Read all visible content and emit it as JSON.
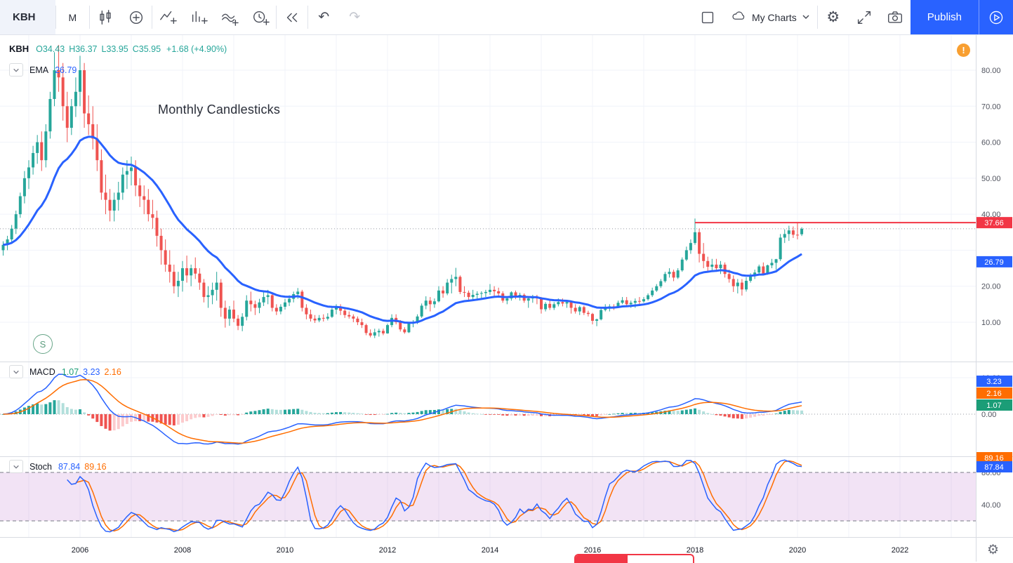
{
  "toolbar": {
    "symbol": "KBH",
    "interval": "M",
    "my_charts": "My Charts",
    "publish": "Publish"
  },
  "icons": {
    "undo_glyph": "↶",
    "redo_glyph": "↷",
    "gear_glyph": "⚙"
  },
  "legend": {
    "symbol": "KBH",
    "open": "O34.43",
    "high": "H36.37",
    "low": "L33.95",
    "close": "C35.95",
    "change": "+1.68 (+4.90%)",
    "ema_label": "EMA",
    "ema_value": "26.79"
  },
  "macd_legend": {
    "label": "MACD",
    "hist": "1.07",
    "macd": "3.23",
    "signal": "2.16"
  },
  "stoch_legend": {
    "label": "Stoch",
    "k": "87.84",
    "d": "89.16"
  },
  "annotations": {
    "note": "Monthly Candlesticks",
    "warning": "!",
    "session_badge": "S"
  },
  "axes": {
    "price_ticks": [
      {
        "v": 80,
        "label": "80.00"
      },
      {
        "v": 70,
        "label": "70.00"
      },
      {
        "v": 60,
        "label": "60.00"
      },
      {
        "v": 50,
        "label": "50.00"
      },
      {
        "v": 40,
        "label": "40.00"
      },
      {
        "v": 20,
        "label": "20.00"
      },
      {
        "v": 10,
        "label": "10.00"
      }
    ],
    "macd_ticks": [
      {
        "v": 10,
        "label": "10.00"
      },
      {
        "v": 0,
        "label": "0.00"
      }
    ],
    "stoch_ticks": [
      {
        "v": 80,
        "label": "80.00"
      },
      {
        "v": 40,
        "label": "40.00"
      }
    ],
    "years": [
      "2006",
      "2008",
      "2010",
      "2012",
      "2014",
      "2016",
      "2018",
      "2020",
      "2022"
    ],
    "price_badges": [
      {
        "label": "37.66",
        "color": "#f23645",
        "price": 37.66
      },
      {
        "label": "26.79",
        "color": "#2962ff",
        "price": 26.79
      }
    ],
    "macd_badges": [
      {
        "label": "3.23",
        "color": "#2962ff"
      },
      {
        "label": "2.16",
        "color": "#ff6d00"
      },
      {
        "label": "1.07",
        "color": "#1b9d77"
      }
    ],
    "stoch_badges": [
      {
        "label": "89.16",
        "color": "#ff6d00"
      },
      {
        "label": "87.84",
        "color": "#2962ff"
      }
    ]
  },
  "colors": {
    "up": "#26a69a",
    "down": "#ef5350",
    "ema": "#2962ff",
    "macd_line": "#2962ff",
    "signal_line": "#ff6d00",
    "hist_up": "#26a69a",
    "hist_up_fade": "#b2dfdb",
    "hist_down": "#ef5350",
    "hist_down_fade": "#fccbcd",
    "stoch_k": "#2962ff",
    "stoch_d": "#ff6d00",
    "band_fill": "rgba(156,39,176,0.13)",
    "band_line": "#787b86",
    "red_line": "#f23645",
    "grid": "#f0f3fa",
    "separator": "#d8dbe2",
    "close_dotted": "#9598a1"
  },
  "chart_data": {
    "type": "candlestick",
    "symbol": "KBH",
    "timeframe": "monthly",
    "start_month": "2004-07",
    "title_note": "Monthly Candlesticks",
    "last_bar": {
      "open": 34.43,
      "high": 36.37,
      "low": 33.95,
      "close": 35.95,
      "change": 1.68,
      "change_pct": 4.9
    },
    "overlays": [
      {
        "name": "EMA",
        "period": 20,
        "last_value": 26.79
      }
    ],
    "horizontal_line": {
      "price": 37.66,
      "from_year": 2018
    },
    "last_close_line": 35.95,
    "indicators": [
      {
        "name": "MACD",
        "params": [
          12,
          26,
          9
        ],
        "hist": 1.07,
        "macd": 3.23,
        "signal": 2.16
      },
      {
        "name": "Stoch",
        "params": [
          14,
          3,
          3
        ],
        "k": 87.84,
        "d": 89.16,
        "bands": [
          80,
          20
        ]
      }
    ],
    "price_axis_range": [
      5,
      88
    ],
    "candles": [
      [
        30,
        32.5,
        28.5,
        31.5
      ],
      [
        31.5,
        34,
        30,
        33
      ],
      [
        33,
        37,
        32,
        36
      ],
      [
        36,
        41,
        34.5,
        40
      ],
      [
        40,
        46,
        39,
        45
      ],
      [
        45,
        52,
        43,
        50
      ],
      [
        50,
        55,
        47,
        53
      ],
      [
        53,
        59,
        51,
        57
      ],
      [
        57,
        62,
        54,
        60
      ],
      [
        60,
        63,
        52,
        55
      ],
      [
        55,
        65,
        53,
        63
      ],
      [
        63,
        74,
        61,
        72
      ],
      [
        72,
        85,
        70,
        80
      ],
      [
        80,
        87,
        74,
        78
      ],
      [
        78,
        82,
        66,
        70
      ],
      [
        70,
        74,
        60,
        64
      ],
      [
        64,
        72,
        62,
        70
      ],
      [
        70,
        78,
        67,
        74
      ],
      [
        74,
        84,
        70,
        80
      ],
      [
        80,
        82,
        64,
        68
      ],
      [
        68,
        73,
        62,
        65
      ],
      [
        65,
        70,
        58,
        61
      ],
      [
        61,
        65,
        52,
        55
      ],
      [
        55,
        58,
        44,
        46
      ],
      [
        46,
        51,
        40,
        44
      ],
      [
        44,
        47,
        38,
        41
      ],
      [
        41,
        46,
        38,
        44
      ],
      [
        44,
        49,
        41,
        46
      ],
      [
        46,
        53,
        44,
        51
      ],
      [
        51,
        55,
        47,
        52
      ],
      [
        52,
        56,
        48,
        53
      ],
      [
        53,
        55,
        45,
        48
      ],
      [
        48,
        50,
        42,
        45
      ],
      [
        45,
        48,
        40,
        44
      ],
      [
        44,
        47,
        38,
        40
      ],
      [
        40,
        44,
        36,
        39
      ],
      [
        39,
        41,
        31,
        34
      ],
      [
        34,
        36,
        26,
        30
      ],
      [
        30,
        33,
        24,
        26
      ],
      [
        26,
        30,
        21,
        24
      ],
      [
        24,
        26,
        18,
        20
      ],
      [
        20,
        24,
        17,
        21.5
      ],
      [
        21.5,
        27,
        18.5,
        25
      ],
      [
        25,
        28.5,
        21,
        23
      ],
      [
        23,
        26,
        20,
        25
      ],
      [
        25,
        28,
        22,
        23.5
      ],
      [
        23.5,
        25,
        19,
        21
      ],
      [
        21,
        22,
        15.5,
        17
      ],
      [
        17,
        20,
        14,
        17.5
      ],
      [
        17.5,
        21,
        15,
        19
      ],
      [
        19,
        24,
        16,
        21
      ],
      [
        21,
        22,
        11.5,
        14
      ],
      [
        14,
        16,
        8.5,
        11
      ],
      [
        11,
        14.5,
        9,
        13.5
      ],
      [
        13.5,
        16,
        10,
        11
      ],
      [
        11,
        12,
        7.8,
        9
      ],
      [
        9,
        12.5,
        7.5,
        11.5
      ],
      [
        11.5,
        17.5,
        10.5,
        16
      ],
      [
        16,
        18.5,
        13,
        15
      ],
      [
        15,
        16,
        12,
        14
      ],
      [
        14,
        16.5,
        12.5,
        15.5
      ],
      [
        15.5,
        18.5,
        14.5,
        17
      ],
      [
        17,
        19,
        15,
        17.5
      ],
      [
        17.5,
        18,
        13,
        14
      ],
      [
        14,
        15,
        12,
        13
      ],
      [
        13,
        15,
        12.2,
        14.3
      ],
      [
        14.3,
        16.5,
        13.5,
        15.5
      ],
      [
        15.5,
        17.5,
        14.5,
        16.5
      ],
      [
        16.5,
        18.5,
        15.5,
        17.8
      ],
      [
        17.8,
        19.5,
        16.5,
        18.5
      ],
      [
        18.5,
        19,
        13,
        14
      ],
      [
        14,
        15,
        10.8,
        12.2
      ],
      [
        12.2,
        13.5,
        10.2,
        11
      ],
      [
        11,
        12,
        9.8,
        10.5
      ],
      [
        10.5,
        12,
        10,
        11.2
      ],
      [
        11.2,
        12.2,
        10.2,
        11
      ],
      [
        11,
        12.5,
        10.5,
        11.5
      ],
      [
        11.5,
        14,
        11.2,
        13.5
      ],
      [
        13.5,
        15,
        12.2,
        14
      ],
      [
        14,
        15,
        12,
        13.2
      ],
      [
        13.2,
        14,
        11.2,
        12
      ],
      [
        12,
        13,
        11,
        11.6
      ],
      [
        11.6,
        12.2,
        10,
        11
      ],
      [
        11,
        11.6,
        9.2,
        10
      ],
      [
        10,
        11,
        8.4,
        9.2
      ],
      [
        9.2,
        9.6,
        6.4,
        7
      ],
      [
        7,
        8,
        5.8,
        6.3
      ],
      [
        6.3,
        8.2,
        5.6,
        7.2
      ],
      [
        7.2,
        8.2,
        6,
        7.6
      ],
      [
        7.6,
        8.2,
        6.4,
        6.9
      ],
      [
        6.9,
        9.6,
        6.8,
        9.2
      ],
      [
        9.2,
        12.2,
        8.6,
        11.2
      ],
      [
        11.2,
        12.2,
        9.4,
        10
      ],
      [
        10,
        10.6,
        7.4,
        8
      ],
      [
        8,
        8.6,
        6.8,
        7.2
      ],
      [
        7.2,
        10,
        7,
        9.6
      ],
      [
        9.6,
        10.6,
        8.6,
        9.9
      ],
      [
        9.9,
        12.2,
        9.5,
        11.6
      ],
      [
        11.6,
        15.2,
        11.2,
        14.6
      ],
      [
        14.6,
        17.2,
        13.6,
        16
      ],
      [
        16,
        17,
        13,
        15
      ],
      [
        15,
        16.6,
        14,
        15.8
      ],
      [
        15.8,
        20,
        15.5,
        18.8
      ],
      [
        18.8,
        20,
        16.8,
        18
      ],
      [
        18,
        22,
        17.5,
        21
      ],
      [
        21,
        23.2,
        18,
        22
      ],
      [
        22,
        25.1,
        20,
        22.6
      ],
      [
        22.6,
        23,
        17.8,
        18.4
      ],
      [
        18.4,
        20,
        17,
        18.2
      ],
      [
        18.2,
        18.8,
        16,
        17
      ],
      [
        17,
        19,
        16,
        17.6
      ],
      [
        17.6,
        18.6,
        16,
        17.9
      ],
      [
        17.9,
        18.6,
        16.6,
        18.1
      ],
      [
        18.1,
        19,
        17,
        18.4
      ],
      [
        18.4,
        20.6,
        17.6,
        19
      ],
      [
        19,
        20,
        17,
        18.6
      ],
      [
        18.6,
        19.6,
        17,
        18
      ],
      [
        18,
        18.6,
        15.4,
        16
      ],
      [
        16,
        17.2,
        15,
        16.6
      ],
      [
        16.6,
        18.6,
        16,
        18.3
      ],
      [
        18.3,
        18.8,
        16.4,
        17
      ],
      [
        17,
        18.2,
        16,
        17.6
      ],
      [
        17.6,
        18,
        15.4,
        16
      ],
      [
        16,
        17.2,
        14,
        16.6
      ],
      [
        16.6,
        17.6,
        15.4,
        16.9
      ],
      [
        16.9,
        17.6,
        15,
        16.6
      ],
      [
        16.6,
        17,
        12.4,
        13.6
      ],
      [
        13.6,
        15.6,
        13,
        15.1
      ],
      [
        15.1,
        16,
        13.4,
        14
      ],
      [
        14,
        15.6,
        13.4,
        15
      ],
      [
        15,
        16.6,
        14.4,
        15.6
      ],
      [
        15.6,
        16.6,
        14.4,
        15.2
      ],
      [
        15.2,
        16,
        14,
        15.6
      ],
      [
        15.6,
        16,
        12.4,
        14
      ],
      [
        14,
        15,
        12.4,
        13
      ],
      [
        13,
        14.6,
        12,
        14.2
      ],
      [
        14.2,
        14.6,
        12,
        12.6
      ],
      [
        12.6,
        13.2,
        11.6,
        12.3
      ],
      [
        12.3,
        12.6,
        9.4,
        10.4
      ],
      [
        10.4,
        11,
        8.9,
        10.8
      ],
      [
        10.8,
        14,
        10.5,
        13.4
      ],
      [
        13.4,
        15,
        13,
        14.1
      ],
      [
        14.1,
        15,
        13,
        14.4
      ],
      [
        14.4,
        15,
        13.4,
        14.2
      ],
      [
        14.2,
        16,
        14,
        15.4
      ],
      [
        15.4,
        17,
        15,
        16.1
      ],
      [
        16.1,
        17,
        14.4,
        15
      ],
      [
        15,
        16,
        14,
        15.4
      ],
      [
        15.4,
        16.6,
        14,
        15.9
      ],
      [
        15.9,
        17,
        15,
        15.8
      ],
      [
        15.8,
        17,
        15.4,
        16.4
      ],
      [
        16.4,
        18,
        16,
        17.5
      ],
      [
        17.5,
        19.6,
        17,
        18.8
      ],
      [
        18.8,
        20.6,
        18.4,
        20
      ],
      [
        20,
        22,
        19.5,
        21.4
      ],
      [
        21.4,
        24,
        21,
        23.4
      ],
      [
        23.4,
        25,
        22.4,
        24
      ],
      [
        24,
        24.6,
        21.4,
        22.4
      ],
      [
        22.4,
        25,
        22,
        24.4
      ],
      [
        24.4,
        28,
        24,
        27.4
      ],
      [
        27.4,
        31,
        27,
        30
      ],
      [
        30,
        33,
        29,
        32
      ],
      [
        32,
        38.8,
        31.5,
        35
      ],
      [
        35,
        36,
        26.6,
        29
      ],
      [
        29,
        32,
        25,
        27
      ],
      [
        27,
        28.2,
        24,
        25.4
      ],
      [
        25.4,
        27.6,
        24.4,
        26
      ],
      [
        26,
        27.6,
        24,
        25
      ],
      [
        25,
        27,
        23.4,
        26
      ],
      [
        26,
        26.6,
        22.4,
        23.4
      ],
      [
        23.4,
        24.6,
        21,
        22
      ],
      [
        22,
        23,
        18.4,
        20
      ],
      [
        20,
        22,
        18,
        21
      ],
      [
        21,
        22,
        17.4,
        19.1
      ],
      [
        19.1,
        22.5,
        18.5,
        21.5
      ],
      [
        21.5,
        23.6,
        21,
        23
      ],
      [
        23,
        24.6,
        22,
        23.8
      ],
      [
        23.8,
        26,
        23,
        25.5
      ],
      [
        25.5,
        26.6,
        23,
        23.5
      ],
      [
        23.5,
        26,
        23.2,
        25.8
      ],
      [
        25.8,
        27.6,
        25,
        26.5
      ],
      [
        26.5,
        27.6,
        24.6,
        27.5
      ],
      [
        27.5,
        34.5,
        27,
        33.5
      ],
      [
        33.5,
        35.8,
        32,
        34.5
      ],
      [
        34.5,
        36.8,
        32.6,
        35.5
      ],
      [
        35.5,
        36.6,
        33.4,
        34.3
      ],
      [
        34.3,
        37.6,
        33,
        34.27
      ],
      [
        34.43,
        36.37,
        33.95,
        35.95
      ]
    ]
  }
}
